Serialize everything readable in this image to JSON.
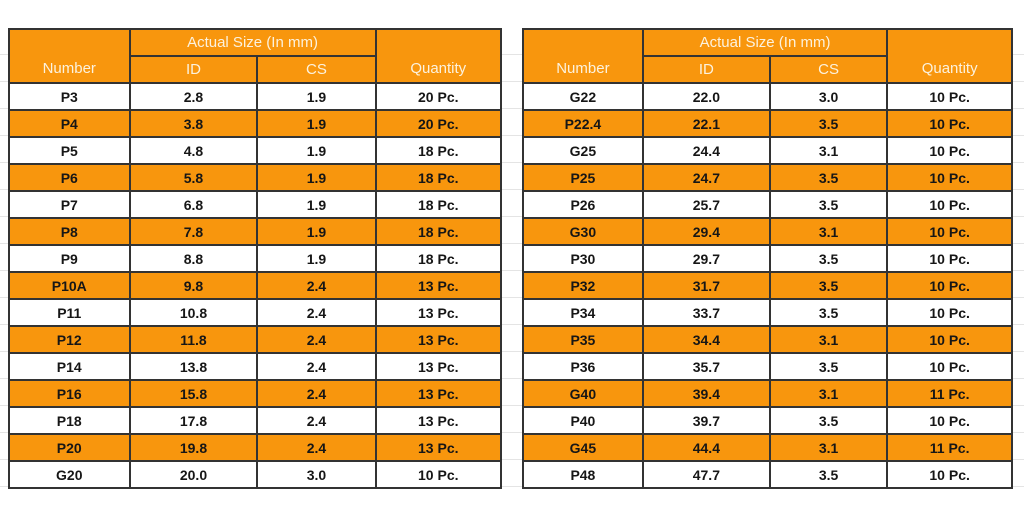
{
  "colors": {
    "orange": "#F8960D",
    "border": "#333333",
    "header_text": "#FCF2DE",
    "data_text": "#161616",
    "gridline": "#e4e4e4",
    "page_background": "#ffffff"
  },
  "table_header": {
    "number": "Number",
    "actual_size": "Actual Size (In mm)",
    "id": "ID",
    "cs": "CS",
    "quantity": "Quantity"
  },
  "tables": {
    "left": {
      "rows": [
        {
          "number": "P3",
          "id": "2.8",
          "cs": "1.9",
          "quantity": "20 Pc."
        },
        {
          "number": "P4",
          "id": "3.8",
          "cs": "1.9",
          "quantity": "20 Pc."
        },
        {
          "number": "P5",
          "id": "4.8",
          "cs": "1.9",
          "quantity": "18 Pc."
        },
        {
          "number": "P6",
          "id": "5.8",
          "cs": "1.9",
          "quantity": "18 Pc."
        },
        {
          "number": "P7",
          "id": "6.8",
          "cs": "1.9",
          "quantity": "18 Pc."
        },
        {
          "number": "P8",
          "id": "7.8",
          "cs": "1.9",
          "quantity": "18 Pc."
        },
        {
          "number": "P9",
          "id": "8.8",
          "cs": "1.9",
          "quantity": "18 Pc."
        },
        {
          "number": "P10A",
          "id": "9.8",
          "cs": "2.4",
          "quantity": "13 Pc."
        },
        {
          "number": "P11",
          "id": "10.8",
          "cs": "2.4",
          "quantity": "13 Pc."
        },
        {
          "number": "P12",
          "id": "11.8",
          "cs": "2.4",
          "quantity": "13 Pc."
        },
        {
          "number": "P14",
          "id": "13.8",
          "cs": "2.4",
          "quantity": "13 Pc."
        },
        {
          "number": "P16",
          "id": "15.8",
          "cs": "2.4",
          "quantity": "13 Pc."
        },
        {
          "number": "P18",
          "id": "17.8",
          "cs": "2.4",
          "quantity": "13 Pc."
        },
        {
          "number": "P20",
          "id": "19.8",
          "cs": "2.4",
          "quantity": "13 Pc."
        },
        {
          "number": "G20",
          "id": "20.0",
          "cs": "3.0",
          "quantity": "10 Pc."
        }
      ]
    },
    "right": {
      "rows": [
        {
          "number": "G22",
          "id": "22.0",
          "cs": "3.0",
          "quantity": "10 Pc."
        },
        {
          "number": "P22.4",
          "id": "22.1",
          "cs": "3.5",
          "quantity": "10 Pc."
        },
        {
          "number": "G25",
          "id": "24.4",
          "cs": "3.1",
          "quantity": "10 Pc."
        },
        {
          "number": "P25",
          "id": "24.7",
          "cs": "3.5",
          "quantity": "10 Pc."
        },
        {
          "number": "P26",
          "id": "25.7",
          "cs": "3.5",
          "quantity": "10 Pc."
        },
        {
          "number": "G30",
          "id": "29.4",
          "cs": "3.1",
          "quantity": "10 Pc."
        },
        {
          "number": "P30",
          "id": "29.7",
          "cs": "3.5",
          "quantity": "10 Pc."
        },
        {
          "number": "P32",
          "id": "31.7",
          "cs": "3.5",
          "quantity": "10 Pc."
        },
        {
          "number": "P34",
          "id": "33.7",
          "cs": "3.5",
          "quantity": "10 Pc."
        },
        {
          "number": "P35",
          "id": "34.4",
          "cs": "3.1",
          "quantity": "10 Pc."
        },
        {
          "number": "P36",
          "id": "35.7",
          "cs": "3.5",
          "quantity": "10 Pc."
        },
        {
          "number": "G40",
          "id": "39.4",
          "cs": "3.1",
          "quantity": "11 Pc."
        },
        {
          "number": "P40",
          "id": "39.7",
          "cs": "3.5",
          "quantity": "10 Pc."
        },
        {
          "number": "G45",
          "id": "44.4",
          "cs": "3.1",
          "quantity": "11 Pc."
        },
        {
          "number": "P48",
          "id": "47.7",
          "cs": "3.5",
          "quantity": "10 Pc."
        }
      ]
    }
  }
}
